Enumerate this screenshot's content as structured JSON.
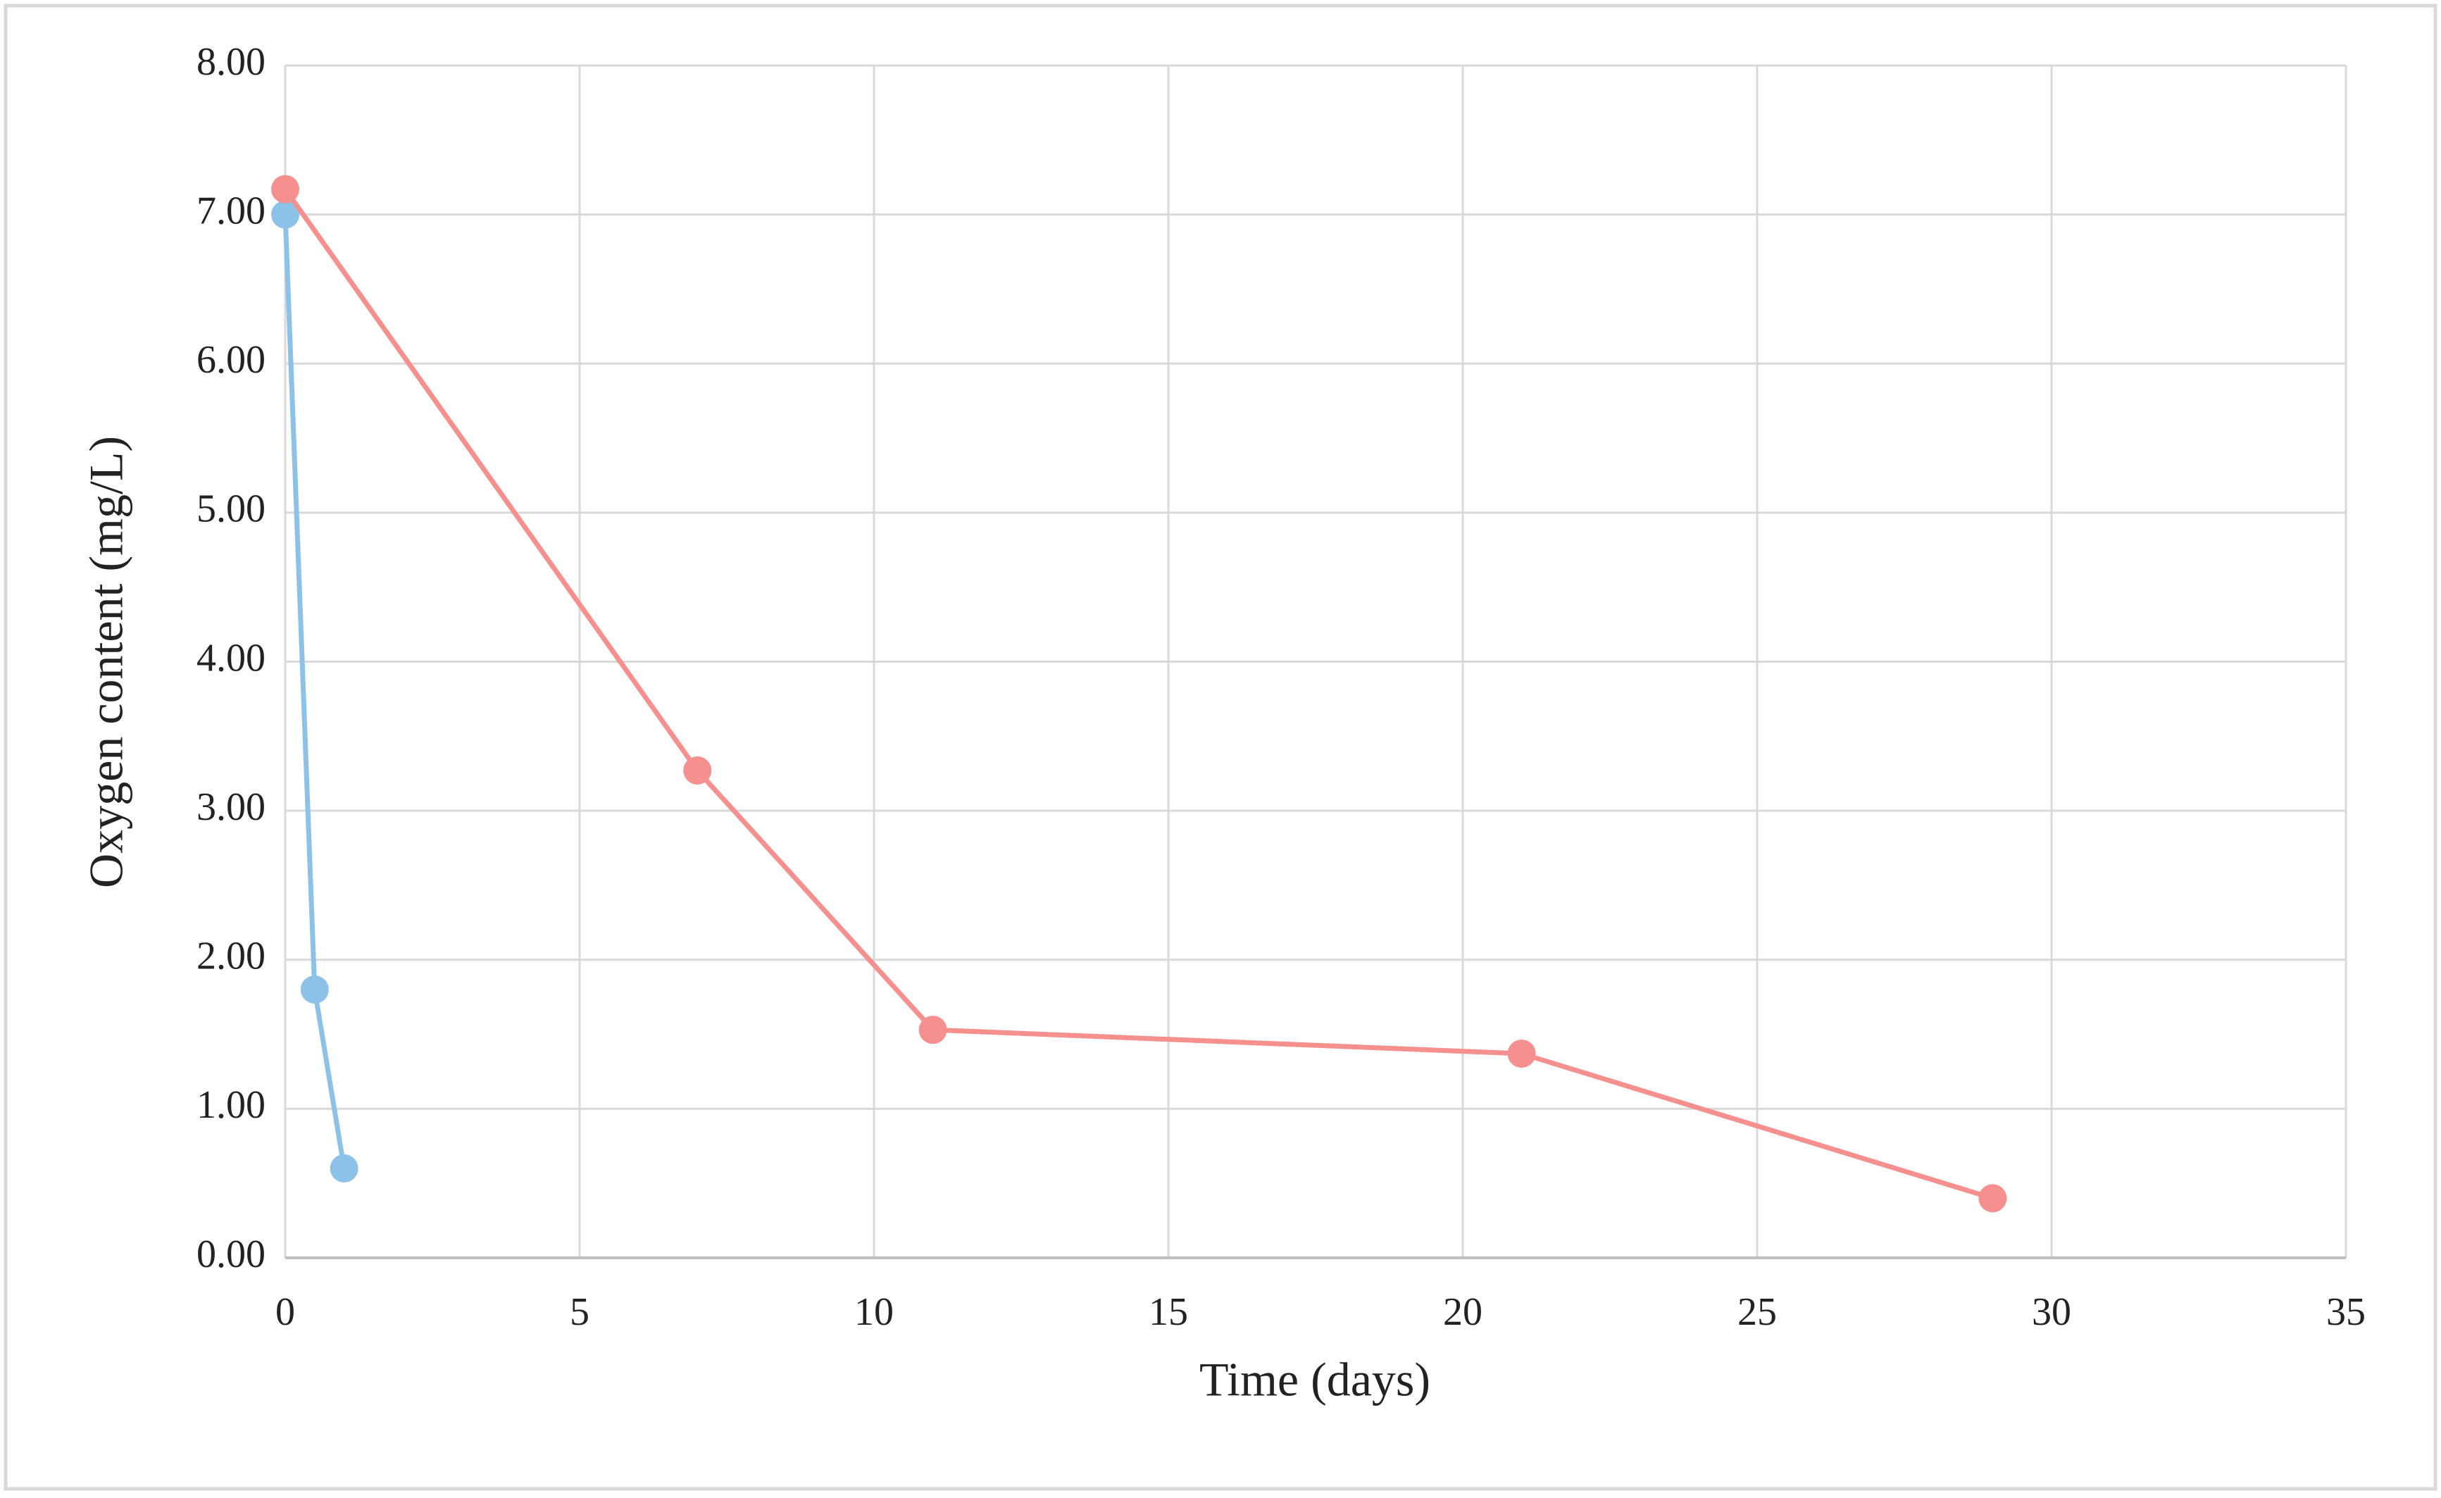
{
  "chart_data": {
    "type": "line",
    "x_label": "Time (days)",
    "y_label": "Oxygen content (mg/L)",
    "series": [
      {
        "color": "#8cc2e8",
        "x": [
          0,
          0.5,
          1
        ],
        "values": [
          7.0,
          1.8,
          0.6
        ]
      },
      {
        "color": "#f5908e",
        "x": [
          0,
          7,
          11,
          21,
          29
        ],
        "values": [
          7.17,
          3.27,
          1.53,
          1.37,
          0.4
        ]
      }
    ],
    "xlim": [
      0,
      35
    ],
    "xticks": [
      0,
      5,
      10,
      15,
      20,
      25,
      30,
      35
    ],
    "ylim": [
      0,
      8
    ],
    "yticks": [
      {
        "value": 0,
        "label": "0.00"
      },
      {
        "value": 1,
        "label": "1.00"
      },
      {
        "value": 2,
        "label": "2.00"
      },
      {
        "value": 3,
        "label": "3.00"
      },
      {
        "value": 4,
        "label": "4.00"
      },
      {
        "value": 5,
        "label": "5.00"
      },
      {
        "value": 6,
        "label": "6.00"
      },
      {
        "value": 7,
        "label": "7.00"
      },
      {
        "value": 8,
        "label": "8.00"
      }
    ],
    "grid": true
  }
}
